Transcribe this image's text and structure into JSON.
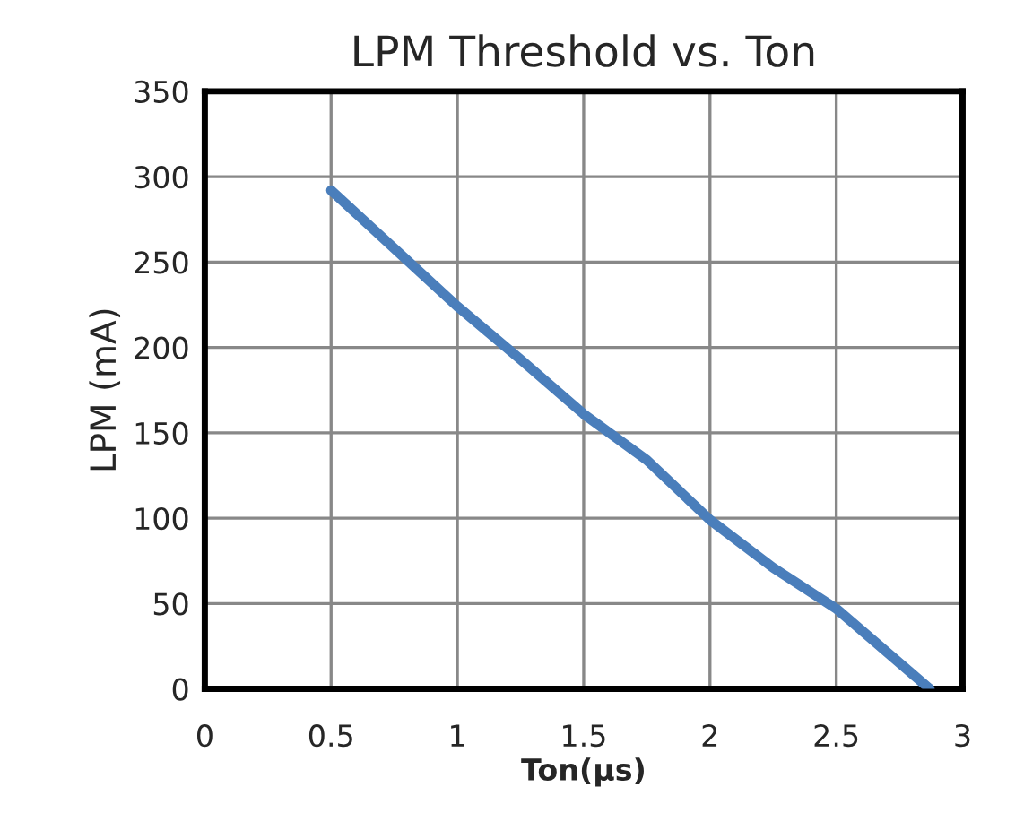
{
  "chart_data": {
    "type": "line",
    "title": "LPM Threshold vs. Ton",
    "xlabel": "Ton(µs)",
    "ylabel": "LPM (mA)",
    "series": [
      {
        "color": "#4a7ebb",
        "x": [
          0.5,
          0.75,
          1,
          1.25,
          1.5,
          1.75,
          2,
          2.25,
          2.5,
          2.87
        ],
        "values": [
          292,
          258,
          224,
          193,
          161,
          134,
          99,
          71,
          47,
          0
        ]
      }
    ],
    "xlim": [
      0,
      3
    ],
    "xticks": [
      0,
      0.5,
      1,
      1.5,
      2,
      2.5,
      3
    ],
    "ylim": [
      0,
      350
    ],
    "yticks": [
      0,
      50,
      100,
      150,
      200,
      250,
      300,
      350
    ],
    "grid": true,
    "marker": "none",
    "line_style": "solid"
  }
}
